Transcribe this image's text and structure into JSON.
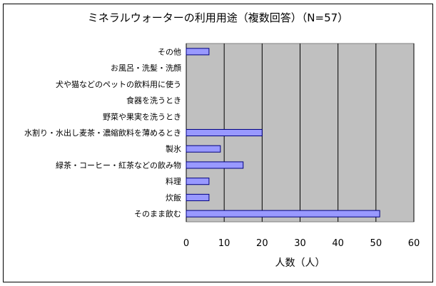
{
  "chart_data": {
    "type": "bar",
    "orientation": "horizontal",
    "title": "ミネラルウォーターの利用用途（複数回答）（N=57）",
    "xlabel": "人数（人）",
    "ylabel": "",
    "categories": [
      "その他",
      "お風呂・洗髪・洗顔",
      "犬や猫などのペットの飲料用に使う",
      "食器を洗うとき",
      "野菜や果実を洗うとき",
      "水割り・水出し麦茶・濃縮飲料を薄めるとき",
      "製氷",
      "緑茶・コーヒー・紅茶などの飲み物",
      "料理",
      "炊飯",
      "そのまま飲む"
    ],
    "values": [
      6,
      0,
      0,
      0,
      0,
      20,
      9,
      15,
      6,
      6,
      51
    ],
    "xlim": [
      0,
      60
    ],
    "xticks": [
      0,
      10,
      20,
      30,
      40,
      50,
      60
    ],
    "grid": true,
    "legend": "none",
    "colors": {
      "bar_fill": "#9999ff",
      "bar_stroke": "#000080",
      "plot_bg": "#c0c0c0",
      "gridline": "#000000"
    }
  }
}
